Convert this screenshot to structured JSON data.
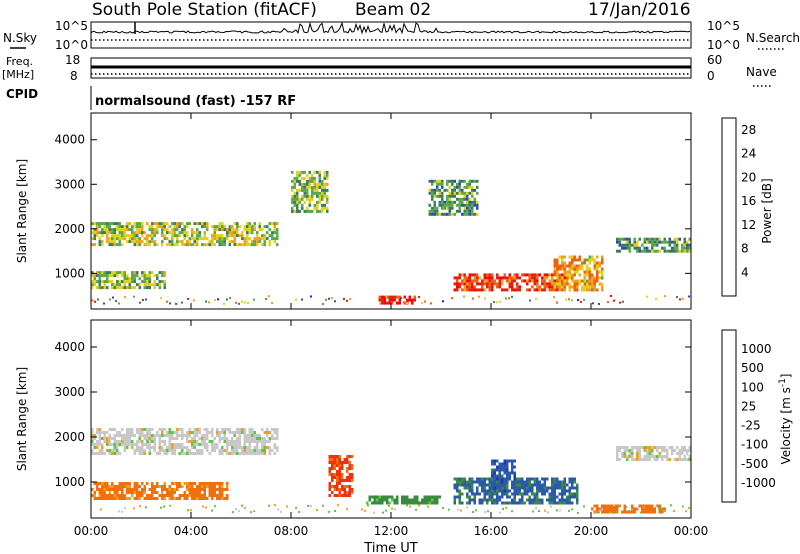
{
  "header": {
    "station": "South Pole Station (fitACF)",
    "beam": "Beam 02",
    "date": "17/Jan/2016"
  },
  "left_labels": {
    "nsky": "N.Sky",
    "freq": "Freq.",
    "freq_unit": "[MHz]",
    "cpid": "CPID"
  },
  "right_labels": {
    "nsearch": "N.Search",
    "nave": "Nave"
  },
  "noise_panel": {
    "ytick_top": "10^5",
    "ytick_bottom": "10^0",
    "right_tick_top": "10^5",
    "right_tick_bottom": "10^0"
  },
  "freq_panel": {
    "left_ticks": [
      "18",
      "8"
    ],
    "right_ticks": [
      "60",
      "0"
    ]
  },
  "cpid_text": "normalsound (fast) -157 RF",
  "colors": {
    "power": [
      "#1a1aff",
      "#2d4fa8",
      "#3a7a60",
      "#5aa84a",
      "#e0d020",
      "#f0a020",
      "#f06010",
      "#e02010",
      "#ff0000"
    ],
    "velocity": [
      "#ff0000",
      "#f03010",
      "#f07010",
      "#f0a020",
      "#c8c8c8",
      "#5cc840",
      "#3a8a40",
      "#2a5aa8",
      "#1a3ab8"
    ]
  },
  "chart_data": [
    {
      "type": "heatmap",
      "name_panel": "power",
      "xlabel": "",
      "ylabel": "Slant Range [km]",
      "xlim_hours": [
        0,
        24
      ],
      "ylim": [
        200,
        4600
      ],
      "yticks": [
        "1000",
        "2000",
        "3000",
        "4000"
      ],
      "colorbar": {
        "label": "Power [dB]",
        "ticks": [
          "4",
          "8",
          "12",
          "16",
          "20",
          "24",
          "28"
        ],
        "range": [
          0,
          30
        ]
      },
      "regions": [
        {
          "x": [
            0.0,
            7.5
          ],
          "y": [
            1650,
            2150
          ],
          "value": 14
        },
        {
          "x": [
            0.0,
            3.0
          ],
          "y": [
            700,
            1050
          ],
          "value": 12
        },
        {
          "x": [
            8.0,
            9.5
          ],
          "y": [
            2400,
            3300
          ],
          "value": 12
        },
        {
          "x": [
            11.5,
            13.0
          ],
          "y": [
            300,
            500
          ],
          "value": 26
        },
        {
          "x": [
            14.5,
            19.0
          ],
          "y": [
            600,
            1000
          ],
          "value": 24
        },
        {
          "x": [
            18.5,
            20.5
          ],
          "y": [
            600,
            1400
          ],
          "value": 18
        },
        {
          "x": [
            13.5,
            15.5
          ],
          "y": [
            2300,
            3100
          ],
          "value": 10
        },
        {
          "x": [
            21.0,
            24.0
          ],
          "y": [
            1500,
            1800
          ],
          "value": 10
        }
      ]
    },
    {
      "type": "heatmap",
      "name_panel": "velocity",
      "xlabel": "Time UT",
      "ylabel": "Slant Range [km]",
      "xlim_hours": [
        0,
        24
      ],
      "ylim": [
        200,
        4600
      ],
      "yticks": [
        "1000",
        "2000",
        "3000",
        "4000"
      ],
      "xticks": [
        "00:00",
        "04:00",
        "08:00",
        "12:00",
        "16:00",
        "20:00",
        "00:00"
      ],
      "colorbar": {
        "label": "Velocity [m s^-1]",
        "ticks": [
          "1000",
          "500",
          "100",
          "25",
          "-25",
          "-100",
          "-500",
          "-1000"
        ]
      },
      "regions": [
        {
          "x": [
            0.0,
            7.5
          ],
          "y": [
            1600,
            2200
          ],
          "value": 0
        },
        {
          "x": [
            0.0,
            5.5
          ],
          "y": [
            650,
            1000
          ],
          "value": -150
        },
        {
          "x": [
            9.5,
            10.5
          ],
          "y": [
            700,
            1600
          ],
          "value": -600
        },
        {
          "x": [
            14.5,
            19.5
          ],
          "y": [
            500,
            1100
          ],
          "value": 600
        },
        {
          "x": [
            16.0,
            17.0
          ],
          "y": [
            800,
            1500
          ],
          "value": 800
        },
        {
          "x": [
            11.0,
            14.0
          ],
          "y": [
            500,
            700
          ],
          "value": 150
        },
        {
          "x": [
            21.0,
            24.0
          ],
          "y": [
            1500,
            1800
          ],
          "value": 0
        },
        {
          "x": [
            20.0,
            23.0
          ],
          "y": [
            350,
            500
          ],
          "value": -200
        }
      ]
    }
  ]
}
